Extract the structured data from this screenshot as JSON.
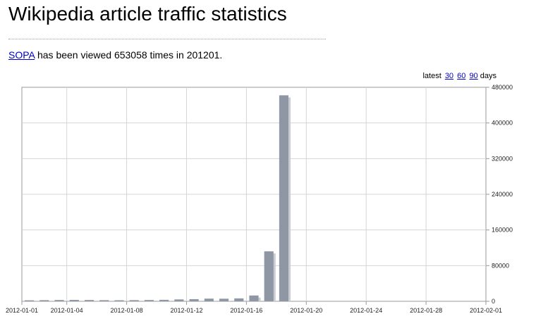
{
  "page": {
    "title": "Wikipedia article traffic statistics"
  },
  "summary": {
    "article_link": "SOPA",
    "text_before_count": " has been viewed ",
    "view_count": "653058",
    "text_after_count": " times in ",
    "period": "201201",
    "end_punct": "."
  },
  "range_selector": {
    "prefix": "latest",
    "options": [
      "30",
      "60",
      "90"
    ],
    "suffix": "days"
  },
  "colors": {
    "bar": "#8e97a3",
    "bar_shadow": "#c9cdd3",
    "grid": "#d5d5d5",
    "axis": "#999999",
    "link": "#0000cc"
  },
  "chart_data": {
    "type": "bar",
    "title": "",
    "xlabel": "",
    "ylabel": "",
    "x_range": [
      "2012-01-01",
      "2012-02-01"
    ],
    "ylim": [
      0,
      480000
    ],
    "grid": true,
    "y_axis_side": "right",
    "x_ticks": [
      "2012-01-01",
      "2012-01-04",
      "2012-01-08",
      "2012-01-12",
      "2012-01-16",
      "2012-01-20",
      "2012-01-24",
      "2012-01-28",
      "2012-02-01"
    ],
    "y_ticks": [
      "0",
      "80000",
      "160000",
      "240000",
      "320000",
      "400000",
      "480000"
    ],
    "dates": [
      "2012-01-01",
      "2012-01-02",
      "2012-01-03",
      "2012-01-04",
      "2012-01-05",
      "2012-01-06",
      "2012-01-07",
      "2012-01-08",
      "2012-01-09",
      "2012-01-10",
      "2012-01-11",
      "2012-01-12",
      "2012-01-13",
      "2012-01-14",
      "2012-01-15",
      "2012-01-16",
      "2012-01-17",
      "2012-01-18"
    ],
    "values": [
      2200,
      2500,
      2900,
      3100,
      2900,
      2500,
      2300,
      2600,
      2900,
      3300,
      4200,
      4800,
      6000,
      5800,
      6500,
      13000,
      112000,
      462000
    ]
  }
}
